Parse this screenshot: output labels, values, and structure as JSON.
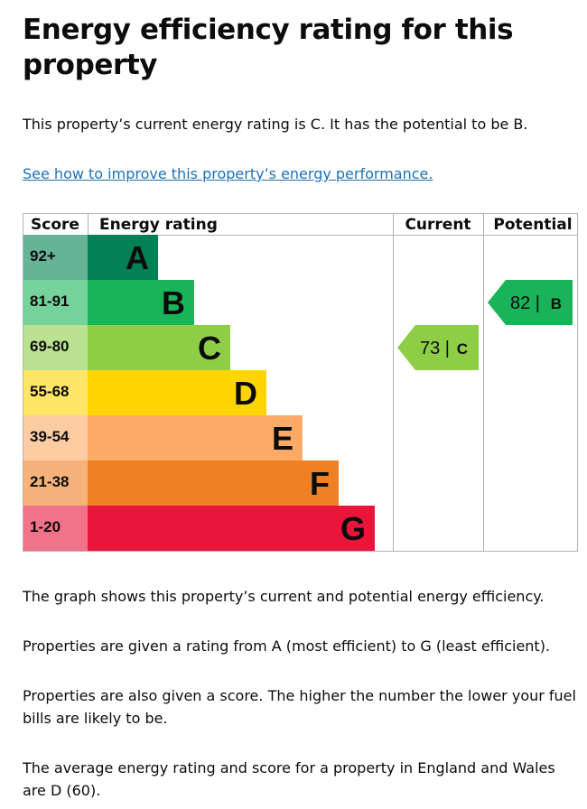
{
  "heading": "Energy efficiency rating for this property",
  "intro": "This property’s current energy rating is C. It has the potential to be B.",
  "link_text": "See how to improve this property’s energy performance.",
  "paragraphs": [
    "The graph shows this property’s current and potential energy efficiency.",
    "Properties are given a rating from A (most efficient) to G (least efficient).",
    "Properties are also given a score. The higher the number the lower your fuel bills are likely to be.",
    "The average energy rating and score for a property in England and Wales are D (60)."
  ],
  "chart_data": {
    "type": "table",
    "columns": [
      "Score",
      "Energy rating",
      "Current",
      "Potential"
    ],
    "bands": [
      {
        "score": "92+",
        "rating": "A",
        "color": "#008054",
        "score_bg": "#66b398"
      },
      {
        "score": "81-91",
        "rating": "B",
        "color": "#19b459",
        "score_bg": "#75d29b"
      },
      {
        "score": "69-80",
        "rating": "C",
        "color": "#8dce46",
        "score_bg": "#bbe290"
      },
      {
        "score": "55-68",
        "rating": "D",
        "color": "#ffd500",
        "score_bg": "#ffe666"
      },
      {
        "score": "39-54",
        "rating": "E",
        "color": "#fcaa65",
        "score_bg": "#fdcca3"
      },
      {
        "score": "21-38",
        "rating": "F",
        "color": "#ef8023",
        "score_bg": "#f5b37b"
      },
      {
        "score": "1-20",
        "rating": "G",
        "color": "#e9153b",
        "score_bg": "#f27389"
      }
    ],
    "current": {
      "value": 73,
      "rating": "C",
      "label": "73 |",
      "color": "#8dce46"
    },
    "potential": {
      "value": 82,
      "rating": "B",
      "label": "82 |",
      "color": "#19b459"
    }
  }
}
